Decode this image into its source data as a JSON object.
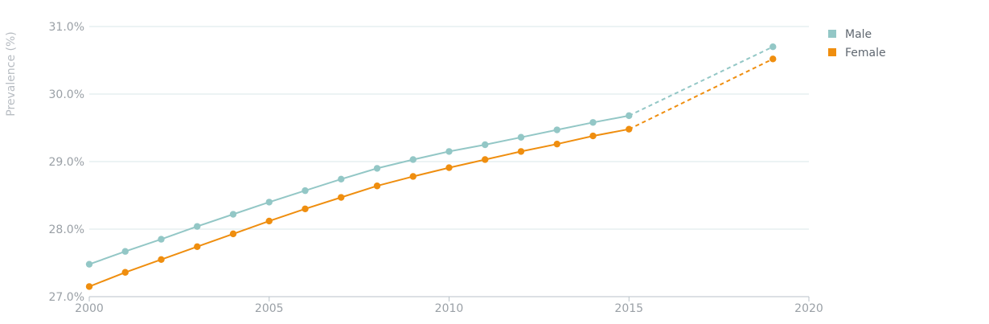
{
  "chart_data": {
    "type": "line",
    "title": "",
    "xlabel": "",
    "ylabel": "Prevalence (%)",
    "xlim": [
      2000,
      2020
    ],
    "ylim": [
      27.0,
      31.0
    ],
    "x_ticks": [
      2000,
      2005,
      2010,
      2015,
      2020
    ],
    "y_ticks": [
      27.0,
      28.0,
      29.0,
      30.0,
      31.0
    ],
    "y_tick_labels": [
      "27.0%",
      "28.0%",
      "29.0%",
      "30.0%",
      "31.0%"
    ],
    "grid": "horizontal",
    "legend_position": "top-right",
    "series": [
      {
        "name": "Male",
        "color": "#93c7c6",
        "x": [
          2000,
          2001,
          2002,
          2003,
          2004,
          2005,
          2006,
          2007,
          2008,
          2009,
          2010,
          2011,
          2012,
          2013,
          2014,
          2015
        ],
        "values": [
          27.48,
          27.67,
          27.85,
          28.04,
          28.22,
          28.4,
          28.57,
          28.74,
          28.9,
          29.03,
          29.15,
          29.25,
          29.36,
          29.47,
          29.58,
          29.68
        ],
        "projection": {
          "x": [
            2015,
            2019
          ],
          "values": [
            29.68,
            30.7
          ]
        }
      },
      {
        "name": "Female",
        "color": "#ef8e0f",
        "x": [
          2000,
          2001,
          2002,
          2003,
          2004,
          2005,
          2006,
          2007,
          2008,
          2009,
          2010,
          2011,
          2012,
          2013,
          2014,
          2015
        ],
        "values": [
          27.15,
          27.36,
          27.55,
          27.74,
          27.93,
          28.12,
          28.3,
          28.47,
          28.64,
          28.78,
          28.91,
          29.03,
          29.15,
          29.26,
          29.38,
          29.48
        ],
        "projection": {
          "x": [
            2015,
            2019
          ],
          "values": [
            29.48,
            30.52
          ]
        }
      }
    ]
  }
}
